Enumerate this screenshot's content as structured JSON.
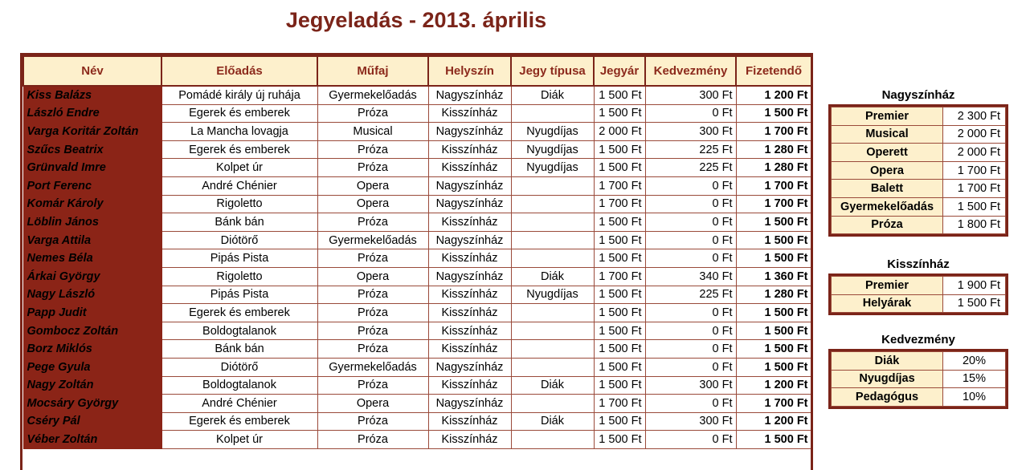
{
  "title": "Jegyeladás - 2013. április",
  "headers": [
    "Név",
    "Előadás",
    "Műfaj",
    "Helyszín",
    "Jegy típusa",
    "Jegyár",
    "Kedvezmény",
    "Fizetendő"
  ],
  "rows": [
    [
      "Kiss Balázs",
      "Pomádé király új ruhája",
      "Gyermekelőadás",
      "Nagyszínház",
      "Diák",
      "1 500 Ft",
      "300 Ft",
      "1 200 Ft"
    ],
    [
      "László Endre",
      "Egerek és emberek",
      "Próza",
      "Kisszínház",
      "",
      "1 500 Ft",
      "0 Ft",
      "1 500 Ft"
    ],
    [
      "Varga Koritár Zoltán",
      "La Mancha lovagja",
      "Musical",
      "Nagyszínház",
      "Nyugdíjas",
      "2 000 Ft",
      "300 Ft",
      "1 700 Ft"
    ],
    [
      "Szűcs Beatrix",
      "Egerek és emberek",
      "Próza",
      "Kisszínház",
      "Nyugdíjas",
      "1 500 Ft",
      "225 Ft",
      "1 280 Ft"
    ],
    [
      "Grünvald Imre",
      "Kolpet úr",
      "Próza",
      "Kisszínház",
      "Nyugdíjas",
      "1 500 Ft",
      "225 Ft",
      "1 280 Ft"
    ],
    [
      "Port Ferenc",
      "André Chénier",
      "Opera",
      "Nagyszínház",
      "",
      "1 700 Ft",
      "0 Ft",
      "1 700 Ft"
    ],
    [
      "Komár Károly",
      "Rigoletto",
      "Opera",
      "Nagyszínház",
      "",
      "1 700 Ft",
      "0 Ft",
      "1 700 Ft"
    ],
    [
      "Löblin János",
      "Bánk bán",
      "Próza",
      "Kisszínház",
      "",
      "1 500 Ft",
      "0 Ft",
      "1 500 Ft"
    ],
    [
      "Varga Attila",
      "Diótörő",
      "Gyermekelőadás",
      "Nagyszínház",
      "",
      "1 500 Ft",
      "0 Ft",
      "1 500 Ft"
    ],
    [
      "Nemes Béla",
      "Pipás Pista",
      "Próza",
      "Kisszínház",
      "",
      "1 500 Ft",
      "0 Ft",
      "1 500 Ft"
    ],
    [
      "Árkai György",
      "Rigoletto",
      "Opera",
      "Nagyszínház",
      "Diák",
      "1 700 Ft",
      "340 Ft",
      "1 360 Ft"
    ],
    [
      "Nagy László",
      "Pipás Pista",
      "Próza",
      "Kisszínház",
      "Nyugdíjas",
      "1 500 Ft",
      "225 Ft",
      "1 280 Ft"
    ],
    [
      "Papp Judit",
      "Egerek és emberek",
      "Próza",
      "Kisszínház",
      "",
      "1 500 Ft",
      "0 Ft",
      "1 500 Ft"
    ],
    [
      "Gombocz Zoltán",
      "Boldogtalanok",
      "Próza",
      "Kisszínház",
      "",
      "1 500 Ft",
      "0 Ft",
      "1 500 Ft"
    ],
    [
      "Borz Miklós",
      "Bánk bán",
      "Próza",
      "Kisszínház",
      "",
      "1 500 Ft",
      "0 Ft",
      "1 500 Ft"
    ],
    [
      "Pege Gyula",
      "Diótörő",
      "Gyermekelőadás",
      "Nagyszínház",
      "",
      "1 500 Ft",
      "0 Ft",
      "1 500 Ft"
    ],
    [
      "Nagy Zoltán",
      "Boldogtalanok",
      "Próza",
      "Kisszínház",
      "Diák",
      "1 500 Ft",
      "300 Ft",
      "1 200 Ft"
    ],
    [
      "Mocsáry György",
      "André Chénier",
      "Opera",
      "Nagyszínház",
      "",
      "1 700 Ft",
      "0 Ft",
      "1 700 Ft"
    ],
    [
      "Cséry Pál",
      "Egerek és emberek",
      "Próza",
      "Kisszínház",
      "Diák",
      "1 500 Ft",
      "300 Ft",
      "1 200 Ft"
    ],
    [
      "Véber Zoltán",
      "Kolpet úr",
      "Próza",
      "Kisszínház",
      "",
      "1 500 Ft",
      "0 Ft",
      "1 500 Ft"
    ]
  ],
  "nagyszinhaz": {
    "title": "Nagyszínház",
    "rows": [
      [
        "Premier",
        "2 300 Ft"
      ],
      [
        "Musical",
        "2 000 Ft"
      ],
      [
        "Operett",
        "2 000 Ft"
      ],
      [
        "Opera",
        "1 700 Ft"
      ],
      [
        "Balett",
        "1 700 Ft"
      ],
      [
        "Gyermekelőadás",
        "1 500 Ft"
      ],
      [
        "Próza",
        "1 800 Ft"
      ]
    ]
  },
  "kisszinhaz": {
    "title": "Kisszínház",
    "rows": [
      [
        "Premier",
        "1 900 Ft"
      ],
      [
        "Helyárak",
        "1 500 Ft"
      ]
    ]
  },
  "kedvezmeny": {
    "title": "Kedvezmény",
    "rows": [
      [
        "Diák",
        "20%"
      ],
      [
        "Nyugdíjas",
        "15%"
      ],
      [
        "Pedagógus",
        "10%"
      ]
    ]
  },
  "colors": {
    "accent": "#7b2419",
    "name_fill": "#8b2417",
    "header_fill": "#fdf0cc",
    "header_text": "#8c2a1c"
  }
}
